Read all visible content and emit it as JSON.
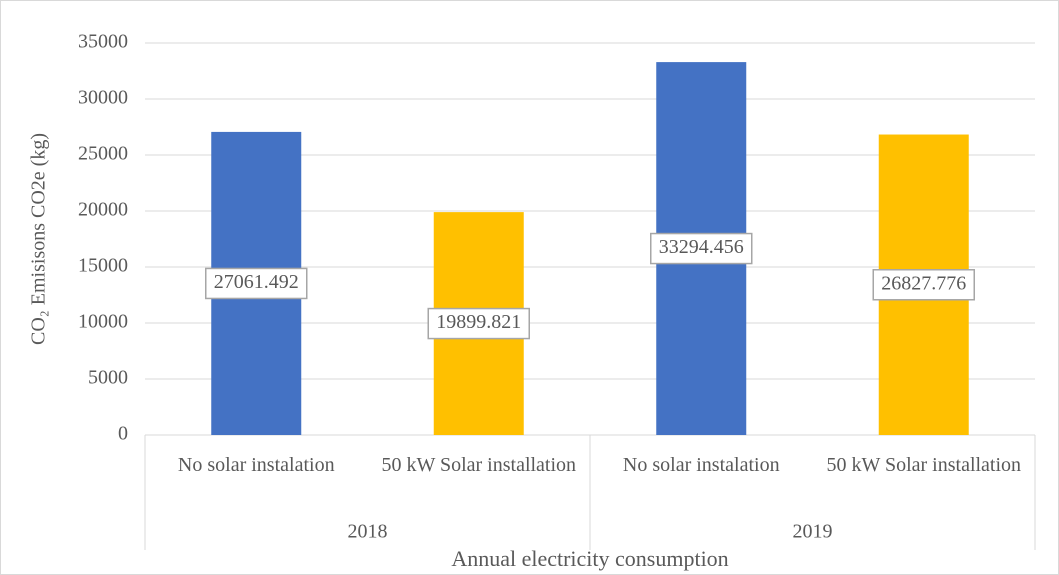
{
  "chart_data": {
    "type": "bar",
    "categories": [
      "No solar instalation",
      "50 kW Solar installation",
      "No solar instalation",
      "50 kW Solar installation"
    ],
    "group_labels": [
      "2018",
      "2019"
    ],
    "values": [
      27061.492,
      19899.821,
      33294.456,
      26827.776
    ],
    "colors": [
      "#4472c4",
      "#ffc000",
      "#4472c4",
      "#ffc000"
    ],
    "y_label": "CO₂ Emisisons CO2e (kg)",
    "x_label": "Annual electricity consumption",
    "ylim": [
      0,
      35000
    ],
    "yticks": [
      0,
      5000,
      10000,
      15000,
      20000,
      25000,
      30000,
      35000
    ],
    "grid": true
  }
}
